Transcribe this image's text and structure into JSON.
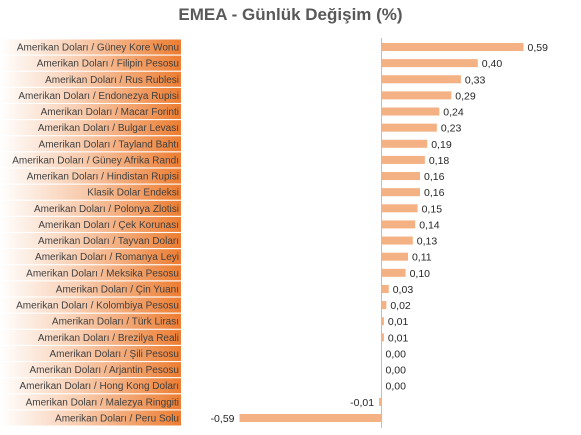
{
  "chart_data": {
    "type": "bar",
    "orientation": "horizontal",
    "title": "EMEA - Günlük Değişim (%)",
    "categories": [
      "Amerikan Doları / Güney Kore Wonu",
      "Amerikan Doları / Filipin Pesosu",
      "Amerikan Doları / Rus Rublesi",
      "Amerikan Doları / Endonezya Rupisi",
      "Amerikan Doları / Macar Forinti",
      "Amerikan Doları / Bulgar Levası",
      "Amerikan Doları / Tayland Bahtı",
      "Amerikan Doları / Güney Afrika Randı",
      "Amerikan Doları / Hindistan Rupisi",
      "Klasik Dolar Endeksi",
      "Amerikan Doları / Polonya Zlotisi",
      "Amerikan Doları / Çek Korunası",
      "Amerikan Doları / Tayvan Doları",
      "Amerikan Doları / Romanya Leyi",
      "Amerikan Doları / Meksika Pesosu",
      "Amerikan Doları / Çin Yuanı",
      "Amerikan Doları / Kolombiya Pesosu",
      "Amerikan Doları / Türk Lirası",
      "Amerikan Doları / Brezilya Reali",
      "Amerikan Doları / Şili Pesosu",
      "Amerikan Doları / Arjantin Pesosu",
      "Amerikan Doları / Hong Kong Doları",
      "Amerikan Doları / Malezya Ringgiti",
      "Amerikan Doları / Peru Solu"
    ],
    "values": [
      0.59,
      0.4,
      0.33,
      0.29,
      0.24,
      0.23,
      0.19,
      0.18,
      0.16,
      0.16,
      0.15,
      0.14,
      0.13,
      0.11,
      0.1,
      0.03,
      0.02,
      0.01,
      0.01,
      0.0,
      0.0,
      0.0,
      -0.01,
      -0.59
    ],
    "value_labels": [
      "0,59",
      "0,40",
      "0,33",
      "0,29",
      "0,24",
      "0,23",
      "0,19",
      "0,18",
      "0,16",
      "0,16",
      "0,15",
      "0,14",
      "0,13",
      "0,11",
      "0,10",
      "0,03",
      "0,02",
      "0,01",
      "0,01",
      "0,00",
      "0,00",
      "0,00",
      "-0,01",
      "-0,59"
    ],
    "xlim": [
      -0.59,
      0.59
    ],
    "grid": false,
    "legend": "none",
    "colors": {
      "bar": "#F4B183",
      "label_band_start": "#FFFFFF",
      "label_band_end": "#ED7D31",
      "axis": "#BFBFBF"
    }
  }
}
